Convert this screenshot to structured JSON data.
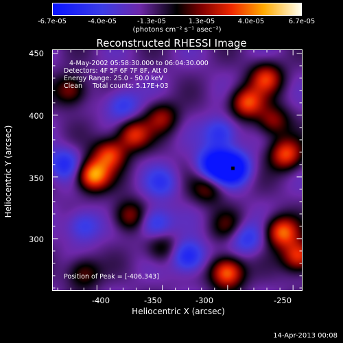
{
  "colorbar": {
    "ticks": [
      {
        "label": "-6.7e-05",
        "value": -6.7e-05
      },
      {
        "label": "-4.0e-05",
        "value": -4e-05
      },
      {
        "label": "-1.3e-05",
        "value": -1.3e-05
      },
      {
        "label": "1.3e-05",
        "value": 1.3e-05
      },
      {
        "label": "4.0e-05",
        "value": 4e-05
      },
      {
        "label": "6.7e-05",
        "value": 6.7e-05
      }
    ],
    "unit": "(photons cm⁻² s⁻¹ asec⁻²)",
    "range": [
      -6.7e-05,
      6.7e-05
    ]
  },
  "chart_data": {
    "type": "heatmap",
    "title": "Reconstructed RHESSI Image",
    "xlabel": "Heliocentric X (arcsec)",
    "ylabel": "Heliocentric Y (arcsec)",
    "xlim": [
      -434,
      -243
    ],
    "ylim": [
      258,
      453
    ],
    "xticks": [
      -400,
      -350,
      -300,
      -250
    ],
    "yticks": [
      300,
      350,
      400,
      450
    ],
    "annotations": [
      "4-May-2002 05:58:30.000 to 06:04:30.000",
      "Detectors: 4F 5F 6F 7F 8F, Att 0",
      "Energy Range: 25.0 - 50.0 keV",
      "Clean     Total counts: 5.17E+03"
    ],
    "peak_label": "Position of Peak = [-406,343]",
    "peak": [
      -406,
      343
    ],
    "hot_sources": [
      {
        "x": -403,
        "y": 351,
        "value": 6.5e-05
      },
      {
        "x": -390,
        "y": 368,
        "value": 4.8e-05
      },
      {
        "x": -372,
        "y": 384,
        "value": 4.5e-05
      },
      {
        "x": -420,
        "y": 420,
        "value": 3.5e-05
      },
      {
        "x": -350,
        "y": 398,
        "value": 3.3e-05
      },
      {
        "x": -285,
        "y": 410,
        "value": 5e-05
      },
      {
        "x": -270,
        "y": 430,
        "value": 4.4e-05
      },
      {
        "x": -255,
        "y": 368,
        "value": 5e-05
      },
      {
        "x": -265,
        "y": 395,
        "value": 3.4e-05
      },
      {
        "x": -258,
        "y": 305,
        "value": 5.5e-05
      },
      {
        "x": -245,
        "y": 285,
        "value": 5.2e-05
      },
      {
        "x": -300,
        "y": 272,
        "value": 6e-05
      },
      {
        "x": -350,
        "y": 292,
        "value": 2.5e-05
      },
      {
        "x": -375,
        "y": 318,
        "value": 3.5e-05
      },
      {
        "x": -410,
        "y": 272,
        "value": 3e-05
      },
      {
        "x": -315,
        "y": 340,
        "value": 2.7e-05
      },
      {
        "x": -300,
        "y": 310,
        "value": 2e-05
      }
    ],
    "cold_sources": [
      {
        "x": -310,
        "y": 360,
        "value": -5.5e-05
      },
      {
        "x": -296,
        "y": 357,
        "value": -6.7e-05
      },
      {
        "x": -330,
        "y": 285,
        "value": -4.5e-05
      },
      {
        "x": -355,
        "y": 312,
        "value": -3.5e-05
      },
      {
        "x": -425,
        "y": 360,
        "value": -3.5e-05
      },
      {
        "x": -410,
        "y": 310,
        "value": -3e-05
      },
      {
        "x": -380,
        "y": 408,
        "value": -3e-05
      },
      {
        "x": -305,
        "y": 385,
        "value": -3.5e-05
      },
      {
        "x": -285,
        "y": 300,
        "value": -3e-05
      },
      {
        "x": -350,
        "y": 345,
        "value": -2.5e-05
      }
    ]
  },
  "footer": {
    "timestamp": "14-Apr-2013 00:08"
  }
}
